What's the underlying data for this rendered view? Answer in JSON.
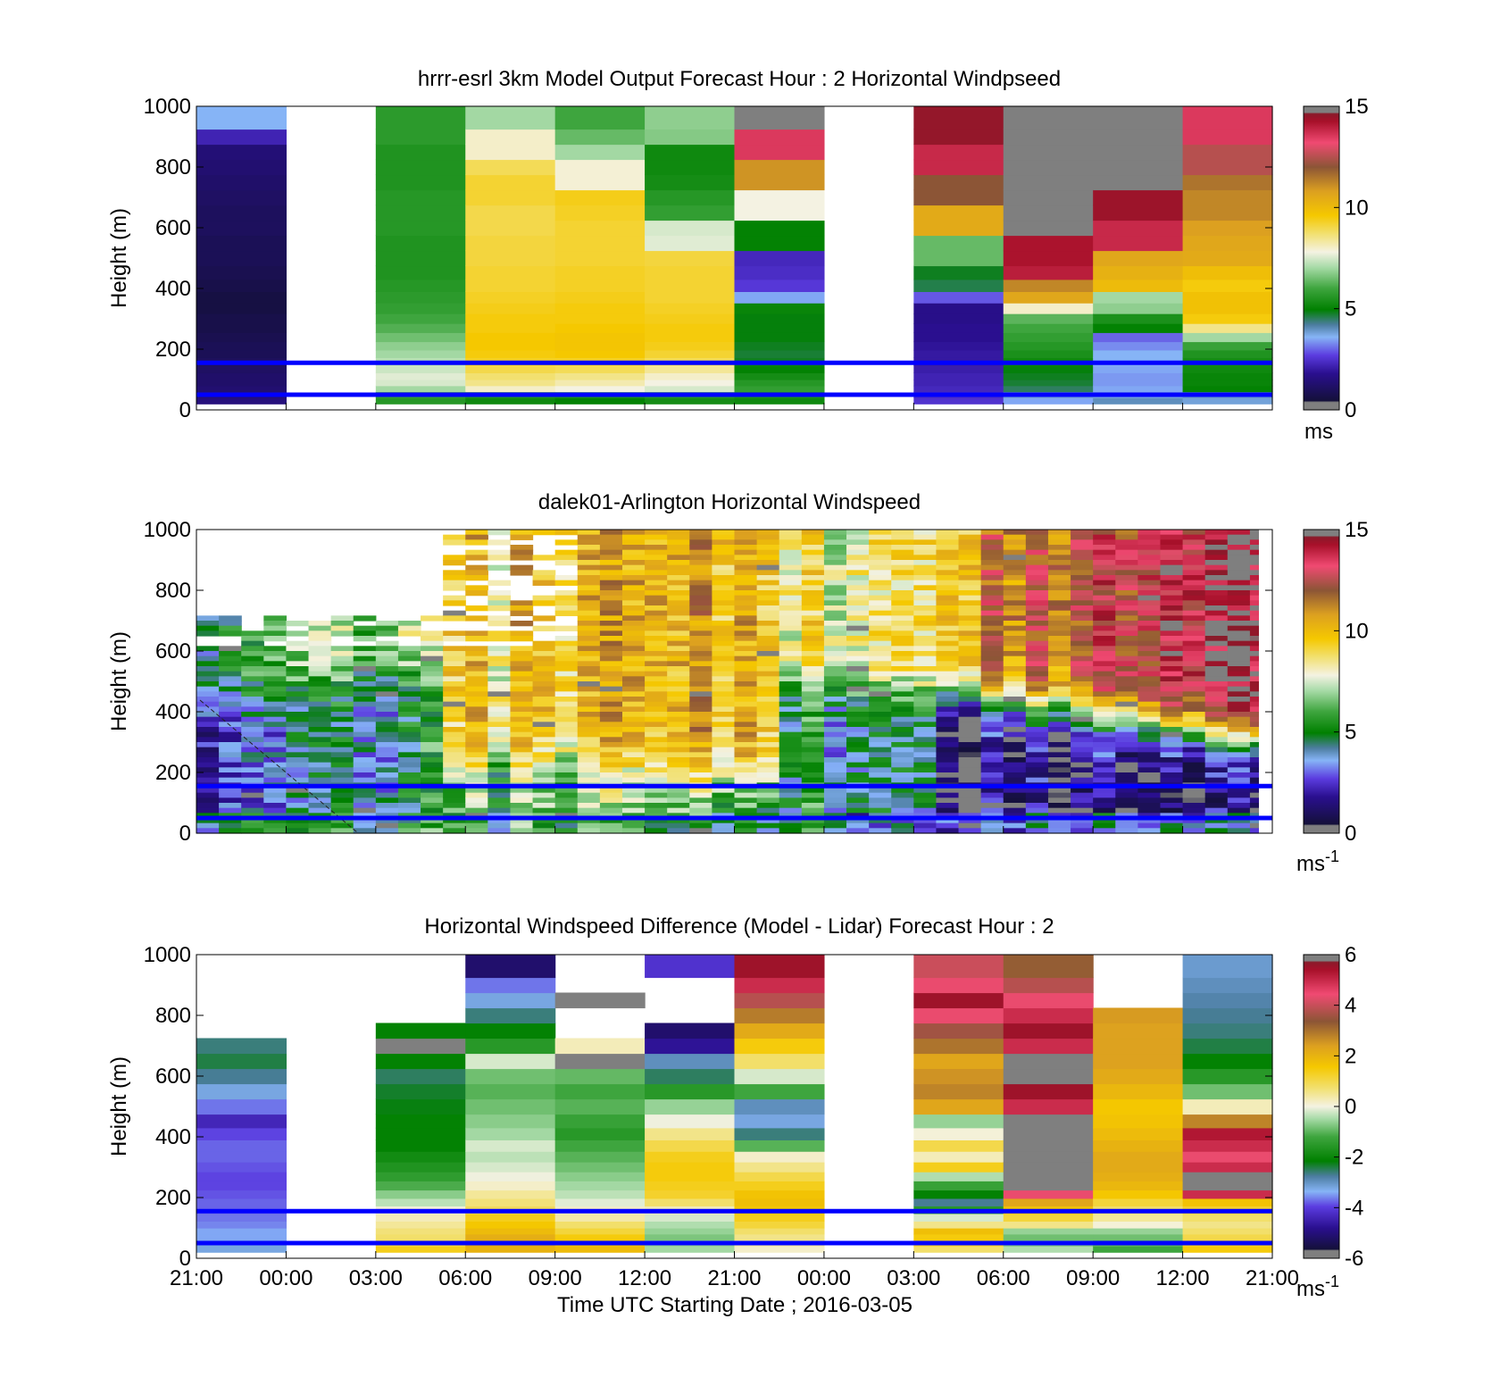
{
  "chart_data": [
    {
      "type": "heatmap",
      "title": "hrrr-esrl 3km Model Output   Forecast Hour : 2 Horizontal Windpseed",
      "ylabel": "Height (m)",
      "xlabel": "",
      "ylim": [
        0,
        1000
      ],
      "yticks": [
        "0",
        "200",
        "400",
        "600",
        "800",
        "1000"
      ],
      "xticks": [],
      "colorbar": {
        "ticks": [
          "0",
          "5",
          "10",
          "15"
        ],
        "range": [
          0,
          15
        ],
        "unit": "ms"
      },
      "reference_lines_m": [
        50,
        155
      ],
      "heights": [
        30,
        50,
        70,
        90,
        110,
        135,
        160,
        185,
        210,
        240,
        270,
        300,
        335,
        370,
        410,
        450,
        500,
        550,
        600,
        650,
        700,
        750,
        800,
        850,
        900,
        950
      ],
      "columns": [
        [
          1.5,
          1.4,
          1.3,
          1.2,
          1.2,
          1.1,
          1.0,
          0.9,
          0.9,
          0.8,
          0.7,
          0.7,
          0.6,
          0.6,
          0.7,
          0.8,
          0.9,
          0.9,
          1.0,
          1.0,
          1.1,
          1.2,
          1.3,
          1.4,
          2.2,
          3.6
        ],
        [
          null,
          null,
          null,
          null,
          null,
          null,
          null,
          null,
          null,
          null,
          null,
          null,
          null,
          null,
          null,
          null,
          null,
          null,
          null,
          null,
          null,
          null,
          null,
          null,
          null,
          null
        ],
        [
          5.6,
          5.8,
          7.0,
          7.5,
          7.6,
          7.4,
          7.2,
          7.0,
          6.8,
          6.5,
          6.2,
          6.0,
          5.8,
          5.7,
          5.6,
          5.5,
          5.5,
          5.5,
          5.6,
          5.6,
          5.6,
          5.5,
          5.5,
          5.5,
          5.7,
          5.7
        ],
        [
          5.2,
          5.5,
          8.0,
          8.5,
          8.7,
          9.0,
          9.3,
          9.5,
          9.6,
          9.6,
          9.5,
          9.5,
          9.4,
          9.3,
          9.2,
          9.2,
          9.1,
          9.1,
          9.0,
          9.0,
          9.2,
          9.2,
          8.9,
          8.0,
          8.0,
          7.0
        ],
        [
          5.0,
          5.4,
          7.8,
          8.2,
          8.5,
          8.9,
          9.3,
          9.6,
          9.7,
          9.7,
          9.6,
          9.5,
          9.5,
          9.4,
          9.3,
          9.3,
          9.2,
          9.2,
          9.2,
          9.3,
          9.4,
          7.9,
          7.9,
          7.0,
          6.4,
          6.0
        ],
        [
          5.3,
          5.6,
          7.5,
          7.8,
          8.0,
          8.4,
          8.9,
          9.2,
          9.4,
          9.5,
          9.5,
          9.4,
          9.3,
          9.2,
          9.2,
          9.2,
          9.1,
          7.6,
          7.5,
          5.8,
          5.6,
          5.3,
          5.2,
          5.2,
          6.7,
          6.8
        ],
        [
          5.2,
          5.4,
          5.8,
          5.6,
          5.3,
          5.0,
          4.8,
          4.7,
          4.8,
          4.9,
          4.9,
          4.9,
          5.1,
          3.5,
          2.6,
          2.4,
          2.3,
          5.0,
          5.0,
          7.8,
          7.8,
          11.0,
          11.0,
          13.5,
          13.5,
          0.2
        ],
        [
          null,
          null,
          null,
          null,
          null,
          null,
          null,
          null,
          null,
          null,
          null,
          null,
          null,
          null,
          null,
          null,
          null,
          null,
          null,
          null,
          null,
          null,
          null,
          null,
          null,
          null
        ],
        [
          2.5,
          2.4,
          2.3,
          2.2,
          2.2,
          2.1,
          2.0,
          2.0,
          1.9,
          1.8,
          1.8,
          1.7,
          1.7,
          2.9,
          4.6,
          4.8,
          6.4,
          6.4,
          10.5,
          10.5,
          12.0,
          12.0,
          13.8,
          13.8,
          14.5,
          14.5
        ],
        [
          3.5,
          3.8,
          4.5,
          4.7,
          4.8,
          4.9,
          5.2,
          5.4,
          5.6,
          5.8,
          6.0,
          6.3,
          8.0,
          10.6,
          11.2,
          14.0,
          14.2,
          14.2,
          0.2,
          0.2,
          0.2,
          0.2,
          0.2,
          0.2,
          0.2,
          0.2
        ],
        [
          4.0,
          3.8,
          3.5,
          3.4,
          3.4,
          3.5,
          3.6,
          3.6,
          3.3,
          3.0,
          5.0,
          5.4,
          6.8,
          7.0,
          10.0,
          10.3,
          10.6,
          13.8,
          13.8,
          14.4,
          14.4,
          0.2,
          0.2,
          0.2,
          0.2,
          0.2
        ],
        [
          3.8,
          3.9,
          5.0,
          5.1,
          5.1,
          5.2,
          5.3,
          5.5,
          5.9,
          7.0,
          8.5,
          9.5,
          9.8,
          9.8,
          9.5,
          9.9,
          10.5,
          10.6,
          10.8,
          11.2,
          11.2,
          11.5,
          12.5,
          12.5,
          13.5,
          13.5
        ]
      ]
    },
    {
      "type": "heatmap",
      "title": "dalek01-Arlington  Horizontal Windspeed",
      "ylabel": "Height (m)",
      "xlabel": "",
      "ylim": [
        0,
        1000
      ],
      "yticks": [
        "0",
        "200",
        "400",
        "600",
        "800",
        "1000"
      ],
      "xticks": [],
      "colorbar": {
        "ticks": [
          "0",
          "5",
          "10",
          "15"
        ],
        "range": [
          0,
          15
        ],
        "unit": "ms",
        "unit_superscript": "-1"
      },
      "reference_lines_m": [
        50,
        155
      ]
    },
    {
      "type": "heatmap",
      "title": "Horizontal Windspeed Difference (Model - Lidar) Forecast Hour : 2",
      "ylabel": "Height (m)",
      "xlabel": "Time UTC  Starting Date ; 2016-03-05",
      "ylim": [
        0,
        1000
      ],
      "yticks": [
        "0",
        "200",
        "400",
        "600",
        "800",
        "1000"
      ],
      "xticks": [
        "21:00",
        "00:00",
        "03:00",
        "06:00",
        "09:00",
        "12:00",
        "21:00",
        "00:00",
        "03:00",
        "06:00",
        "09:00",
        "12:00",
        "21:00"
      ],
      "colorbar": {
        "ticks": [
          "-6",
          "-4",
          "-2",
          "0",
          "2",
          "4",
          "6"
        ],
        "range": [
          -6,
          6
        ],
        "unit": "ms",
        "unit_superscript": "-1"
      },
      "reference_lines_m": [
        50,
        155
      ],
      "heights": [
        30,
        50,
        70,
        90,
        110,
        135,
        160,
        185,
        210,
        240,
        270,
        300,
        335,
        370,
        410,
        450,
        500,
        550,
        600,
        650,
        700,
        750,
        800,
        850,
        900,
        950
      ],
      "columns": [
        [
          -3.0,
          -3.0,
          -3.2,
          -3.2,
          -3.4,
          -3.5,
          -3.6,
          -3.6,
          -3.7,
          -3.8,
          -3.8,
          -3.7,
          -3.6,
          -3.6,
          -3.8,
          -4.2,
          -3.5,
          -3.0,
          -2.6,
          -2.3,
          -2.5,
          null,
          null,
          null,
          null,
          null
        ],
        [
          null,
          null,
          null,
          null,
          null,
          null,
          null,
          null,
          null,
          null,
          null,
          null,
          null,
          null,
          null,
          null,
          null,
          null,
          null,
          null,
          null,
          null,
          null,
          null,
          null,
          null
        ],
        [
          1.5,
          1.3,
          1.0,
          0.9,
          0.7,
          0.5,
          0.3,
          -0.2,
          -0.6,
          -1.1,
          -1.4,
          -1.6,
          -1.8,
          -2.0,
          -2.0,
          -2.0,
          -2.1,
          -2.2,
          -2.4,
          -2.0,
          6.0,
          -2.0,
          null,
          null,
          null,
          null
        ],
        [
          2.2,
          2.4,
          2.3,
          2.0,
          1.7,
          1.5,
          1.1,
          0.9,
          0.7,
          0.4,
          0.2,
          0.0,
          -0.2,
          0.0,
          -0.4,
          -0.6,
          -0.8,
          -1.0,
          -0.8,
          0.0,
          -1.5,
          -2.0,
          -2.5,
          -3.0,
          -3.5,
          -5.0
        ],
        [
          2.0,
          1.9,
          1.6,
          1.3,
          1.0,
          0.6,
          0.4,
          0.1,
          -0.2,
          -0.4,
          -0.6,
          -0.8,
          -1.0,
          -1.2,
          -1.5,
          -1.3,
          -1.0,
          -1.2,
          -0.9,
          6.0,
          0.5,
          null,
          null,
          6.0,
          null,
          null
        ],
        [
          -0.4,
          -0.5,
          -0.7,
          -0.5,
          -0.3,
          0.0,
          0.5,
          1.0,
          1.4,
          1.5,
          1.6,
          1.6,
          1.5,
          1.2,
          0.8,
          0.2,
          -0.5,
          -1.5,
          -2.4,
          -2.8,
          -4.5,
          -5.0,
          null,
          null,
          null,
          -4.0
        ],
        [
          0.4,
          0.6,
          0.8,
          1.0,
          1.3,
          1.5,
          1.7,
          1.9,
          1.8,
          1.5,
          1.2,
          0.8,
          0.4,
          -1.0,
          -2.5,
          -3.0,
          -2.8,
          -1.2,
          0.0,
          1.0,
          1.6,
          2.4,
          3.1,
          4.0,
          5.0,
          5.5
        ],
        [
          null,
          null,
          null,
          null,
          null,
          null,
          null,
          null,
          null,
          null,
          null,
          null,
          null,
          null,
          null,
          null,
          null,
          null,
          null,
          null,
          null,
          null,
          null,
          null,
          null,
          null
        ],
        [
          1.0,
          1.3,
          1.6,
          1.9,
          0.8,
          0.0,
          -1.5,
          -2.6,
          -2.0,
          -1.3,
          -0.3,
          1.5,
          0.5,
          1.2,
          0.3,
          -0.5,
          2.5,
          3.0,
          2.8,
          2.5,
          3.2,
          3.8,
          4.5,
          5.5,
          4.5,
          4.2
        ],
        [
          -0.3,
          -0.6,
          -0.8,
          -0.5,
          0.8,
          1.3,
          1.8,
          2.5,
          4.5,
          6.0,
          6.0,
          6.0,
          6.0,
          6.0,
          6.0,
          6.0,
          5.0,
          5.5,
          6.0,
          6.0,
          5.0,
          5.5,
          5.0,
          4.5,
          4.0,
          3.5
        ],
        [
          -1.2,
          -1.0,
          -0.8,
          -0.5,
          0.3,
          0.7,
          1.0,
          1.3,
          1.7,
          2.1,
          2.3,
          2.4,
          2.4,
          2.2,
          2.0,
          1.8,
          1.7,
          2.1,
          2.4,
          2.6,
          2.6,
          2.6,
          2.7,
          null,
          null,
          null
        ],
        [
          1.6,
          1.5,
          1.2,
          1.0,
          0.8,
          1.0,
          1.4,
          1.8,
          5.0,
          6.0,
          6.0,
          5.0,
          4.5,
          5.0,
          5.3,
          3.0,
          0.5,
          -0.8,
          -1.5,
          -2.0,
          -2.3,
          -2.5,
          -2.6,
          -2.7,
          -2.8,
          -2.9
        ]
      ]
    }
  ]
}
